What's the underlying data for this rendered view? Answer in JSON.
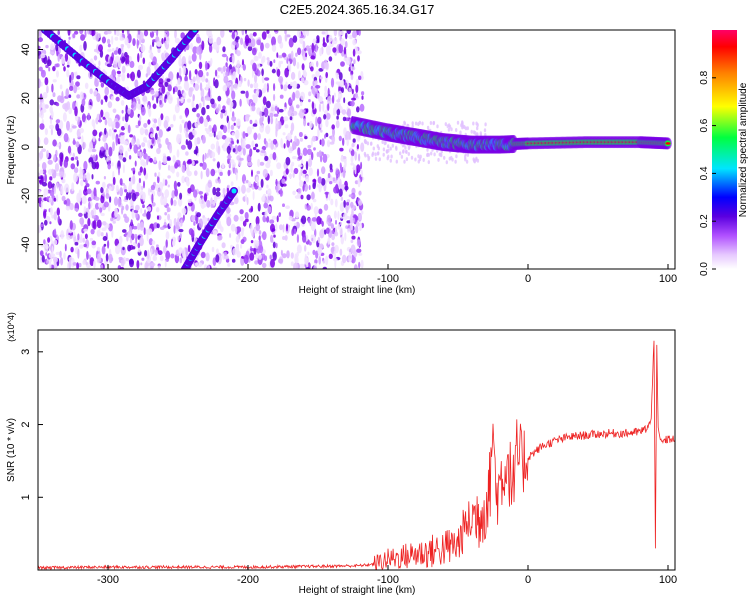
{
  "page_title": "C2E5.2024.365.16.34.G17",
  "chart_data": [
    {
      "type": "heatmap",
      "title": "",
      "xlabel": "Height of straight line (km)",
      "ylabel": "Frequency (Hz)",
      "xlim": [
        -350,
        105
      ],
      "ylim": [
        -50,
        48
      ],
      "xticks": [
        -300,
        -200,
        -100,
        0,
        100
      ],
      "yticks": [
        -40,
        -20,
        0,
        20,
        40
      ],
      "colorbar": {
        "label": "Normalized spectral amplitude",
        "range": [
          0,
          1
        ],
        "ticks": [
          "0.0",
          "0.2",
          "0.4",
          "0.6",
          "0.8"
        ],
        "colormap": [
          "#ffffff",
          "#d9a8ff",
          "#7a00e6",
          "#0000ff",
          "#00e5ff",
          "#00ff40",
          "#ffff00",
          "#ff8000",
          "#ff0000",
          "#ff0066"
        ]
      },
      "features": [
        {
          "description": "upper curved trace",
          "points": [
            [
              -345,
              48
            ],
            [
              -320,
              36
            ],
            [
              -298,
              26
            ],
            [
              -285,
              21
            ],
            [
              -272,
              25
            ],
            [
              -255,
              36
            ],
            [
              -238,
              48
            ]
          ]
        },
        {
          "description": "lower curved trace",
          "points": [
            [
              -245,
              -50
            ],
            [
              -235,
              -40
            ],
            [
              -222,
              -28
            ],
            [
              -210,
              -18
            ]
          ]
        },
        {
          "description": "main signal ridge",
          "points": [
            [
              -125,
              9
            ],
            [
              -100,
              6
            ],
            [
              -80,
              4
            ],
            [
              -60,
              2
            ],
            [
              -40,
              1
            ],
            [
              -20,
              1
            ],
            [
              0,
              1.5
            ],
            [
              40,
              2
            ],
            [
              80,
              2
            ],
            [
              100,
              1.5
            ]
          ]
        }
      ]
    },
    {
      "type": "line",
      "title": "",
      "xlabel": "Height of straight line (km)",
      "ylabel": "SNR (10 * v/v)",
      "y_multiplier": "(x10^4)",
      "xlim": [
        -350,
        105
      ],
      "ylim": [
        0,
        3.3
      ],
      "xticks": [
        -300,
        -200,
        -100,
        0,
        100
      ],
      "yticks": [
        1,
        2,
        3
      ],
      "series": [
        {
          "color": "#ee2222",
          "x": [
            -350,
            -300,
            -250,
            -200,
            -150,
            -120,
            -110,
            -100,
            -90,
            -80,
            -70,
            -60,
            -50,
            -45,
            -40,
            -35,
            -30,
            -27,
            -25,
            -23,
            -20,
            -15,
            -10,
            -8,
            -5,
            0,
            10,
            20,
            30,
            40,
            50,
            60,
            70,
            80,
            85,
            88,
            90,
            91,
            92,
            93,
            95,
            100,
            105
          ],
          "y": [
            0.03,
            0.04,
            0.04,
            0.04,
            0.05,
            0.06,
            0.08,
            0.15,
            0.18,
            0.22,
            0.25,
            0.3,
            0.35,
            0.6,
            0.7,
            0.75,
            0.9,
            1.2,
            2.1,
            1.0,
            1.2,
            1.5,
            1.1,
            1.6,
            1.5,
            1.55,
            1.7,
            1.78,
            1.83,
            1.85,
            1.87,
            1.88,
            1.88,
            1.9,
            1.95,
            2.05,
            3.2,
            0.35,
            3.1,
            1.9,
            1.75,
            1.8,
            1.8
          ]
        }
      ]
    }
  ]
}
